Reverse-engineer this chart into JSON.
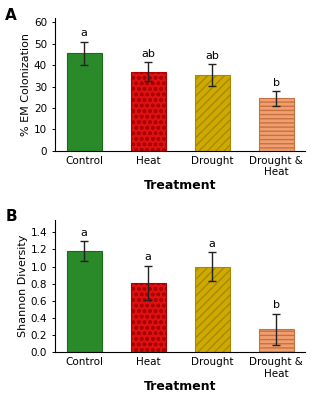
{
  "panel_A": {
    "title": "A",
    "categories": [
      "Control",
      "Heat",
      "Drought",
      "Drought &\nHeat"
    ],
    "values": [
      45.5,
      37.0,
      35.5,
      24.5
    ],
    "errors": [
      5.5,
      4.5,
      5.0,
      3.5
    ],
    "letters": [
      "a",
      "ab",
      "ab",
      "b"
    ],
    "ylabel": "% EM Colonization",
    "xlabel": "Treatment",
    "ylim": [
      0,
      62
    ],
    "yticks": [
      0,
      10,
      20,
      30,
      40,
      50,
      60
    ]
  },
  "panel_B": {
    "title": "B",
    "categories": [
      "Control",
      "Heat",
      "Drought",
      "Drought &\nHeat"
    ],
    "values": [
      1.18,
      0.81,
      1.0,
      0.27
    ],
    "errors": [
      0.12,
      0.2,
      0.17,
      0.18
    ],
    "letters": [
      "a",
      "a",
      "a",
      "b"
    ],
    "ylabel": "Shannon Diversity",
    "xlabel": "Treatment",
    "ylim": [
      0,
      1.55
    ],
    "yticks": [
      0.0,
      0.2,
      0.4,
      0.6,
      0.8,
      1.0,
      1.2,
      1.4
    ]
  },
  "bg_color": "#ffffff",
  "face_colors": [
    "#2a8a2a",
    "#dd1111",
    "#ccaa00",
    "#f0a070"
  ],
  "edge_colors": [
    "#1a6a1a",
    "#aa0000",
    "#aa8800",
    "#c87040"
  ],
  "hatch_patterns": [
    "",
    "ooo",
    "////",
    "----"
  ],
  "hatch_colors": [
    "#1a6a1a",
    "#aa0000",
    "#aa8800",
    "#c87040"
  ],
  "bar_width": 0.55,
  "error_capsize": 3,
  "letter_fontsize": 8,
  "tick_fontsize": 7.5,
  "xlabel_fontsize": 9,
  "ylabel_fontsize": 8,
  "panel_label_fontsize": 11
}
